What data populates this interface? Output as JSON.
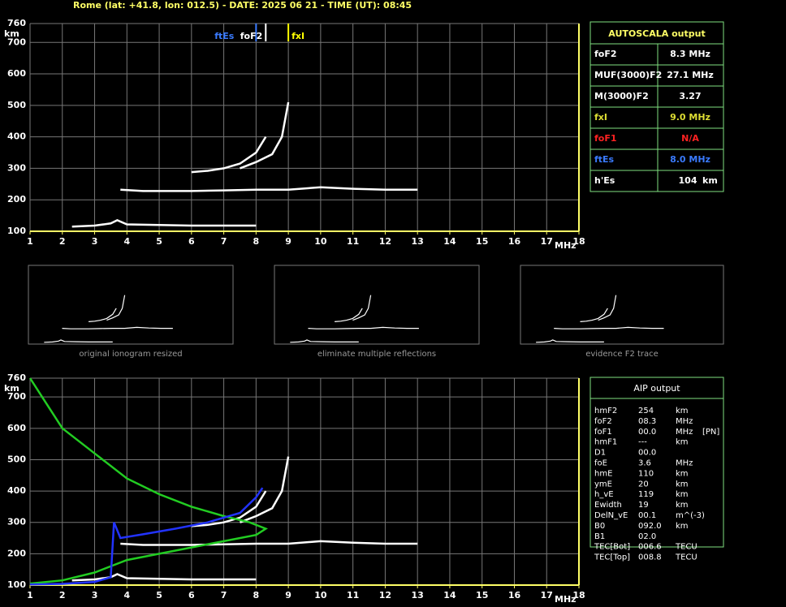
{
  "header": "Rome (lat: +41.8, lon: 012.5) - DATE: 2025 06 21 - TIME (UT): 08:45",
  "chart_data": [
    {
      "type": "line",
      "xlabel": "MHz",
      "ylabel": "km",
      "xlim": [
        1,
        18
      ],
      "xticks": [
        1,
        2,
        3,
        4,
        5,
        6,
        7,
        8,
        9,
        10,
        11,
        12,
        13,
        14,
        15,
        16,
        17,
        18
      ],
      "ylim": [
        100,
        760
      ],
      "yticks": [
        100,
        200,
        300,
        400,
        500,
        600,
        700,
        760
      ],
      "grid": true,
      "markers": [
        {
          "label": "ftEs",
          "value": 8.0,
          "color": "#3a7bff"
        },
        {
          "label": "foF2",
          "value": 8.3,
          "color": "#ffffff"
        },
        {
          "label": "fxI",
          "value": 9.0,
          "color": "#ffff00"
        }
      ],
      "series": [
        {
          "color": "#ffffff",
          "x": [
            2.3,
            3,
            3.5,
            3.7,
            4,
            5,
            6,
            7,
            8
          ],
          "values": [
            115,
            118,
            125,
            135,
            122,
            120,
            118,
            118,
            118
          ]
        },
        {
          "color": "#ffffff",
          "x": [
            3.8,
            4.5,
            5,
            6,
            7,
            8,
            9,
            10,
            11,
            12,
            13
          ],
          "values": [
            232,
            228,
            228,
            228,
            230,
            232,
            232,
            240,
            235,
            232,
            232
          ]
        },
        {
          "color": "#ffffff",
          "x": [
            6,
            6.5,
            7,
            7.5,
            8,
            8.3
          ],
          "values": [
            288,
            292,
            300,
            315,
            350,
            400
          ]
        },
        {
          "color": "#ffffff",
          "x": [
            7.5,
            8,
            8.5,
            8.8,
            9.0
          ],
          "values": [
            300,
            320,
            345,
            400,
            510
          ]
        }
      ]
    },
    {
      "type": "line",
      "xlabel": "MHz",
      "ylabel": "km",
      "xlim": [
        1,
        18
      ],
      "xticks": [
        1,
        2,
        3,
        4,
        5,
        6,
        7,
        8,
        9,
        10,
        11,
        12,
        13,
        14,
        15,
        16,
        17,
        18
      ],
      "ylim": [
        100,
        760
      ],
      "yticks": [
        100,
        200,
        300,
        400,
        500,
        600,
        700,
        760
      ],
      "grid": true,
      "series": [
        {
          "color": "#ffffff",
          "x": [
            2.3,
            3,
            3.5,
            3.7,
            4,
            5,
            6,
            7,
            8
          ],
          "values": [
            115,
            118,
            125,
            135,
            122,
            120,
            118,
            118,
            118
          ]
        },
        {
          "color": "#ffffff",
          "x": [
            3.8,
            4.5,
            5,
            6,
            7,
            8,
            9,
            10,
            11,
            12,
            13
          ],
          "values": [
            232,
            228,
            228,
            228,
            230,
            232,
            232,
            240,
            235,
            232,
            232
          ]
        },
        {
          "color": "#ffffff",
          "x": [
            6,
            6.5,
            7,
            7.5,
            8,
            8.3
          ],
          "values": [
            288,
            292,
            300,
            315,
            350,
            400
          ]
        },
        {
          "color": "#ffffff",
          "x": [
            7.5,
            8,
            8.5,
            8.8,
            9.0
          ],
          "values": [
            300,
            320,
            345,
            400,
            510
          ]
        },
        {
          "color": "#22cc22",
          "x": [
            1,
            1.5,
            2,
            3,
            4,
            5,
            6,
            7,
            7.8,
            8.3,
            8,
            7,
            6,
            5,
            4,
            3,
            2,
            1
          ],
          "values": [
            760,
            680,
            600,
            520,
            440,
            390,
            350,
            320,
            300,
            280,
            260,
            240,
            220,
            200,
            180,
            140,
            115,
            105
          ]
        },
        {
          "color": "#2233ff",
          "x": [
            1,
            2,
            3,
            3.5,
            3.6,
            3.8,
            4.5,
            5.5,
            6.5,
            7.5,
            8,
            8.2
          ],
          "values": [
            102,
            104,
            110,
            125,
            300,
            250,
            262,
            280,
            300,
            330,
            380,
            410
          ]
        }
      ]
    }
  ],
  "thumbnails": [
    "original ionogram resized",
    "eliminate multiple reflections",
    "evidence F2 trace"
  ],
  "autoscala": {
    "title": "AUTOSCALA output",
    "rows": [
      [
        "foF2",
        "8.3 MHz"
      ],
      [
        "MUF(3000)F2",
        "27.1 MHz"
      ],
      [
        "M(3000)F2",
        "3.27"
      ],
      [
        "fxI",
        "9.0 MHz"
      ],
      [
        "foF1",
        "N/A"
      ],
      [
        "ftEs",
        "8.0 MHz"
      ],
      [
        "h'Es",
        "104",
        "km"
      ]
    ]
  },
  "aip": {
    "title": "AIP output",
    "rows": [
      [
        "hmF2",
        "254",
        "km"
      ],
      [
        "foF2",
        "08.3",
        "MHz"
      ],
      [
        "foF1",
        "00.0",
        "MHz",
        "[PN]"
      ],
      [
        "hmF1",
        "---",
        "km"
      ],
      [
        "D1",
        "00.0"
      ],
      [
        "foE",
        "3.6",
        "MHz"
      ],
      [
        "hmE",
        "110",
        "km"
      ],
      [
        "ymE",
        "20",
        "km"
      ],
      [
        "h_vE",
        "119",
        "km"
      ],
      [
        "Ewidth",
        "19",
        "km"
      ],
      [
        "DelN_vE",
        "00.1",
        "m^(-3)"
      ],
      [
        "B0",
        "092.0",
        "km"
      ],
      [
        "B1",
        "02.0"
      ],
      [
        "TEC[Bot]",
        "006.6",
        "TECU"
      ],
      [
        "TEC[Top]",
        "008.8",
        "TECU"
      ]
    ]
  }
}
